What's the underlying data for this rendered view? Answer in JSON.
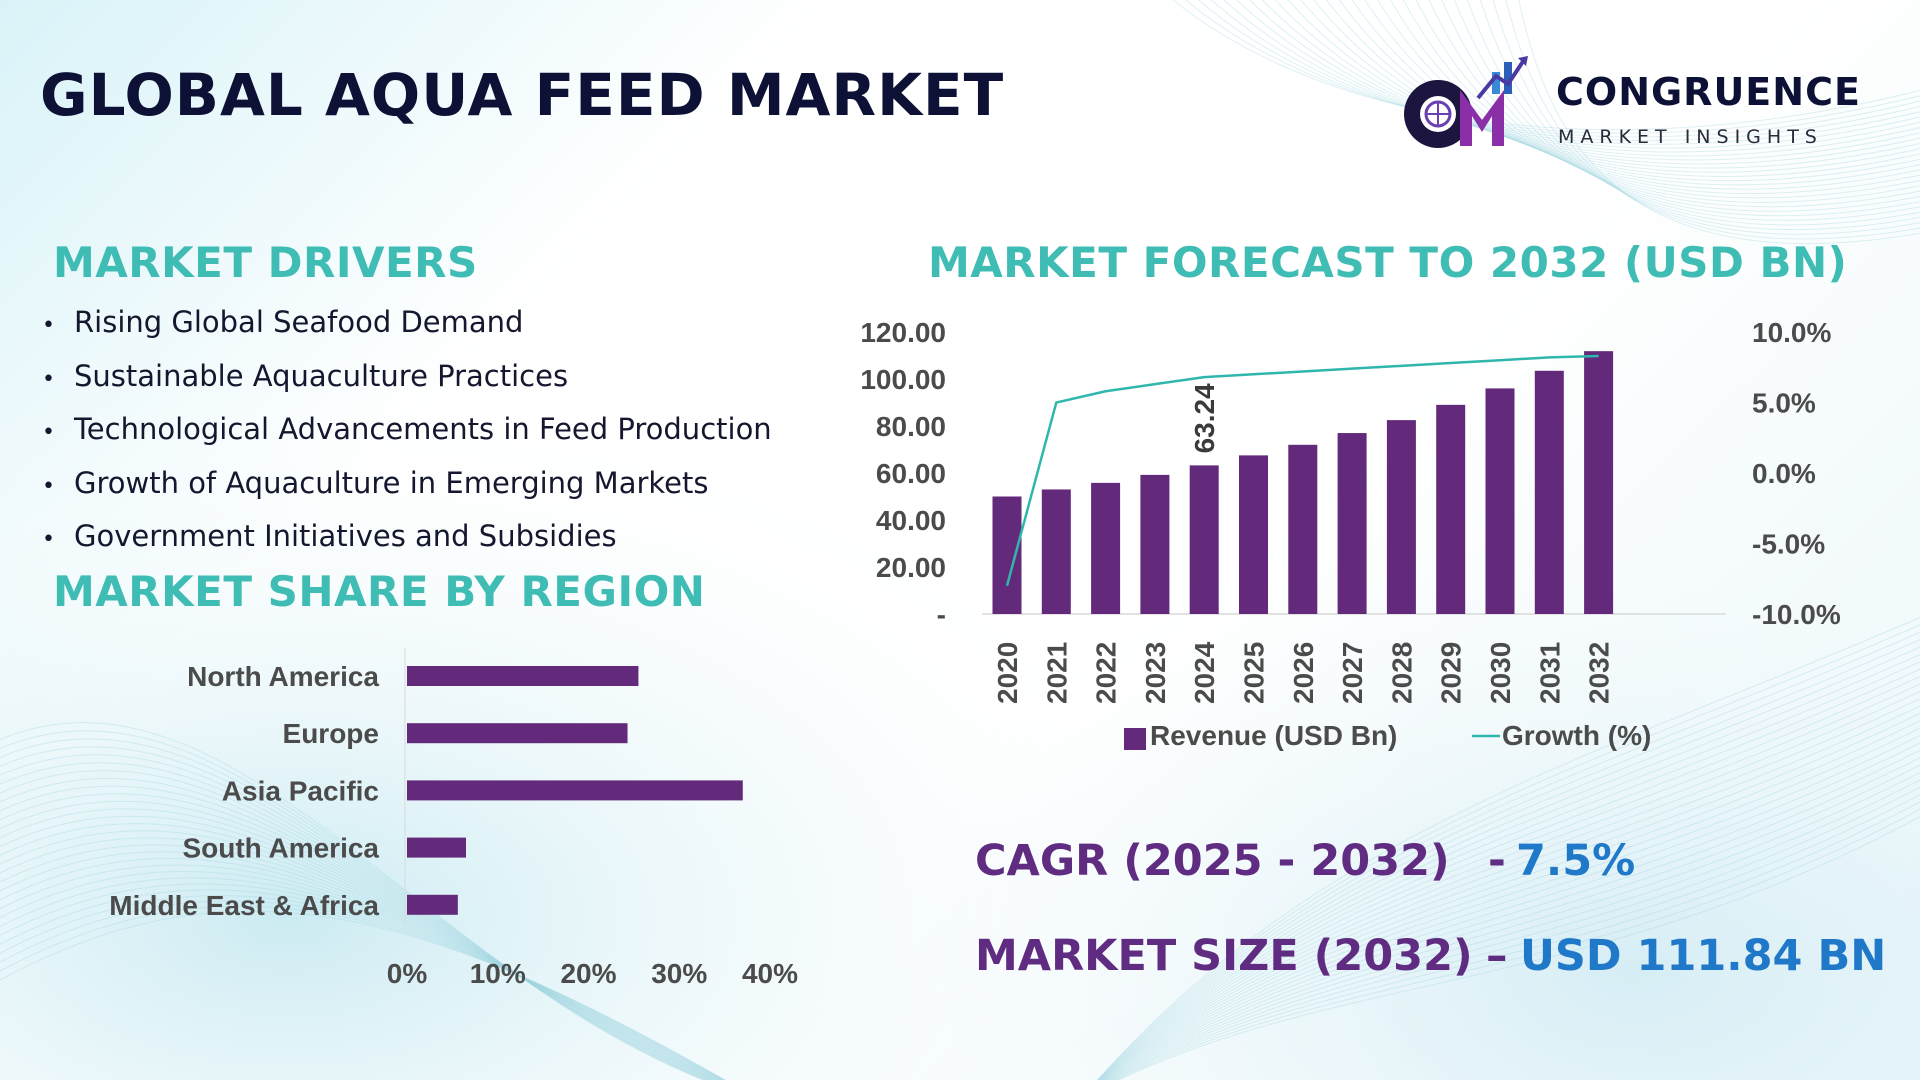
{
  "header": {
    "title": "GLOBAL AQUA FEED MARKET",
    "logo_name": "CONGRUENCE",
    "logo_tagline": "MARKET INSIGHTS"
  },
  "drivers": {
    "heading": "MARKET DRIVERS",
    "items": [
      "Rising Global Seafood Demand",
      "Sustainable Aquaculture Practices",
      "Technological Advancements in Feed Production",
      "Growth of Aquaculture in Emerging Markets",
      "Government Initiatives and Subsidies"
    ]
  },
  "region": {
    "heading": "MARKET SHARE BY REGION"
  },
  "forecast": {
    "heading": "MARKET FORECAST TO 2032 (USD BN)"
  },
  "stats": {
    "cagr_label": "CAGR (2025 - 2032)",
    "cagr_dash": "-",
    "cagr_value": "7.5%",
    "size_label": "MARKET SIZE (2032)",
    "size_dash": "–",
    "size_value": "USD 111.84 BN"
  },
  "colors": {
    "bar": "#63297b",
    "growth_line": "#2fb7ad",
    "heading_teal": "#3fbcb4",
    "stat_purple": "#5f2c82",
    "stat_blue": "#1f78c8"
  },
  "chart_data": [
    {
      "type": "bar",
      "orientation": "horizontal",
      "categories": [
        "North America",
        "Europe",
        "Asia Pacific",
        "South America",
        "Middle East & Africa"
      ],
      "values": [
        25.5,
        24.3,
        37.0,
        6.5,
        5.6
      ],
      "unit": "%",
      "xlim": [
        0,
        40
      ],
      "xticks": [
        "0%",
        "10%",
        "20%",
        "30%",
        "40%"
      ],
      "grid": false,
      "legend": "none"
    },
    {
      "type": "bar+line",
      "categories": [
        "2020",
        "2021",
        "2022",
        "2023",
        "2024",
        "2025",
        "2026",
        "2027",
        "2028",
        "2029",
        "2030",
        "2031",
        "2032"
      ],
      "series": [
        {
          "name": "Revenue (USD Bn)",
          "type": "bar",
          "axis": "left",
          "values": [
            50.0,
            53.0,
            55.8,
            59.2,
            63.24,
            67.5,
            72.0,
            77.0,
            82.5,
            89.0,
            96.0,
            103.5,
            111.84
          ]
        },
        {
          "name": "Growth (%)",
          "type": "line",
          "axis": "right",
          "values": [
            -8.0,
            5.0,
            5.8,
            6.3,
            6.8,
            7.0,
            7.2,
            7.4,
            7.6,
            7.8,
            8.0,
            8.2,
            8.3
          ]
        }
      ],
      "data_labels": [
        {
          "category": "2024",
          "text": "63.24"
        }
      ],
      "y_left": {
        "lim": [
          0,
          120
        ],
        "ticks": [
          "-",
          "20.00",
          "40.00",
          "60.00",
          "80.00",
          "100.00",
          "120.00"
        ]
      },
      "y_right": {
        "lim": [
          -10,
          10
        ],
        "ticks": [
          "-10.0%",
          "-5.0%",
          "0.0%",
          "5.0%",
          "10.0%"
        ]
      },
      "grid": false,
      "legend": "bottom"
    }
  ]
}
